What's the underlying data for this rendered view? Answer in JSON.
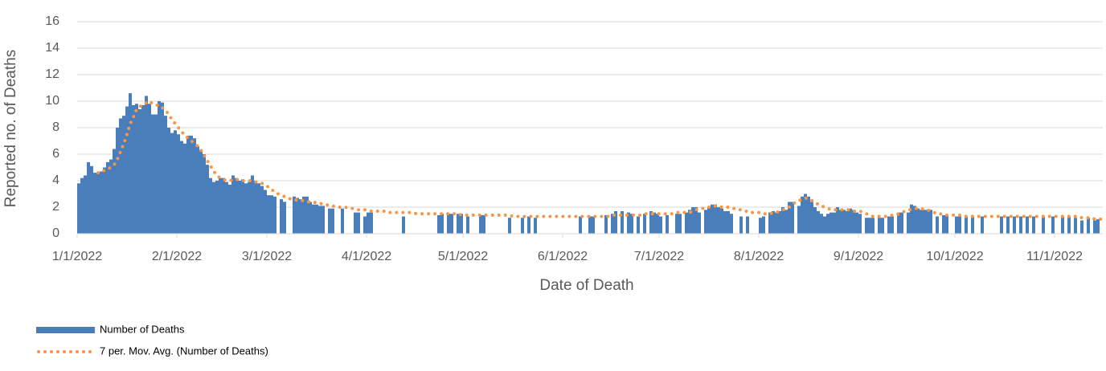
{
  "chart_data": {
    "type": "bar",
    "y_label": "Reported no. of Deaths",
    "x_label": "Date of Death",
    "ylim": [
      0,
      16
    ],
    "yticks": [
      0,
      2,
      4,
      6,
      8,
      10,
      12,
      14,
      16
    ],
    "grid": true,
    "legend": "bottom-left",
    "xticks": [
      "1/1/2022",
      "2/1/2022",
      "3/1/2022",
      "4/1/2022",
      "5/1/2022",
      "6/1/2022",
      "7/1/2022",
      "8/1/2022",
      "9/1/2022",
      "10/1/2022",
      "11/1/2022"
    ],
    "x": [
      "1/1/2022",
      "1/2/2022",
      "1/3/2022",
      "1/4/2022",
      "1/5/2022",
      "1/6/2022",
      "1/7/2022",
      "1/8/2022",
      "1/9/2022",
      "1/10/2022",
      "1/11/2022",
      "1/12/2022",
      "1/13/2022",
      "1/14/2022",
      "1/15/2022",
      "1/16/2022",
      "1/17/2022",
      "1/18/2022",
      "1/19/2022",
      "1/20/2022",
      "1/21/2022",
      "1/22/2022",
      "1/23/2022",
      "1/24/2022",
      "1/25/2022",
      "1/26/2022",
      "1/27/2022",
      "1/28/2022",
      "1/29/2022",
      "1/30/2022",
      "1/31/2022",
      "2/1/2022",
      "2/2/2022",
      "2/3/2022",
      "2/4/2022",
      "2/5/2022",
      "2/6/2022",
      "2/7/2022",
      "2/8/2022",
      "2/9/2022",
      "2/10/2022",
      "2/11/2022",
      "2/12/2022",
      "2/13/2022",
      "2/14/2022",
      "2/15/2022",
      "2/16/2022",
      "2/17/2022",
      "2/18/2022",
      "2/19/2022",
      "2/20/2022",
      "2/21/2022",
      "2/22/2022",
      "2/23/2022",
      "2/24/2022",
      "2/25/2022",
      "2/26/2022",
      "2/27/2022",
      "2/28/2022",
      "3/1/2022",
      "3/2/2022",
      "3/3/2022",
      "3/4/2022",
      "3/5/2022",
      "3/6/2022",
      "3/7/2022",
      "3/8/2022",
      "3/9/2022",
      "3/10/2022",
      "3/11/2022",
      "3/12/2022",
      "3/13/2022",
      "3/14/2022",
      "3/15/2022",
      "3/16/2022",
      "3/17/2022",
      "3/18/2022",
      "3/19/2022",
      "3/20/2022",
      "3/21/2022",
      "3/22/2022",
      "3/23/2022",
      "3/24/2022",
      "3/25/2022",
      "3/26/2022",
      "3/27/2022",
      "3/28/2022",
      "3/29/2022",
      "3/30/2022",
      "3/31/2022",
      "4/1/2022",
      "4/2/2022",
      "4/3/2022",
      "4/4/2022",
      "4/5/2022",
      "4/6/2022",
      "4/7/2022",
      "4/8/2022",
      "4/9/2022",
      "4/10/2022",
      "4/11/2022",
      "4/12/2022",
      "4/13/2022",
      "4/14/2022",
      "4/15/2022",
      "4/16/2022",
      "4/17/2022",
      "4/18/2022",
      "4/19/2022",
      "4/20/2022",
      "4/21/2022",
      "4/22/2022",
      "4/23/2022",
      "4/24/2022",
      "4/25/2022",
      "4/26/2022",
      "4/27/2022",
      "4/28/2022",
      "4/29/2022",
      "4/30/2022",
      "5/1/2022",
      "5/2/2022",
      "5/3/2022",
      "5/4/2022",
      "5/5/2022",
      "5/6/2022",
      "5/7/2022",
      "5/8/2022",
      "5/9/2022",
      "5/10/2022",
      "5/11/2022",
      "5/12/2022",
      "5/13/2022",
      "5/14/2022",
      "5/15/2022",
      "5/16/2022",
      "5/17/2022",
      "5/18/2022",
      "5/19/2022",
      "5/20/2022",
      "5/21/2022",
      "5/22/2022",
      "5/23/2022",
      "5/24/2022",
      "5/25/2022",
      "5/26/2022",
      "5/27/2022",
      "5/28/2022",
      "5/29/2022",
      "5/30/2022",
      "5/31/2022",
      "6/1/2022",
      "6/2/2022",
      "6/3/2022",
      "6/4/2022",
      "6/5/2022",
      "6/6/2022",
      "6/7/2022",
      "6/8/2022",
      "6/9/2022",
      "6/10/2022",
      "6/11/2022",
      "6/12/2022",
      "6/13/2022",
      "6/14/2022",
      "6/15/2022",
      "6/16/2022",
      "6/17/2022",
      "6/18/2022",
      "6/19/2022",
      "6/20/2022",
      "6/21/2022",
      "6/22/2022",
      "6/23/2022",
      "6/24/2022",
      "6/25/2022",
      "6/26/2022",
      "6/27/2022",
      "6/28/2022",
      "6/29/2022",
      "6/30/2022",
      "7/1/2022",
      "7/2/2022",
      "7/3/2022",
      "7/4/2022",
      "7/5/2022",
      "7/6/2022",
      "7/7/2022",
      "7/8/2022",
      "7/9/2022",
      "7/10/2022",
      "7/11/2022",
      "7/12/2022",
      "7/13/2022",
      "7/14/2022",
      "7/15/2022",
      "7/16/2022",
      "7/17/2022",
      "7/18/2022",
      "7/19/2022",
      "7/20/2022",
      "7/21/2022",
      "7/22/2022",
      "7/23/2022",
      "7/24/2022",
      "7/25/2022",
      "7/26/2022",
      "7/27/2022",
      "7/28/2022",
      "7/29/2022",
      "7/30/2022",
      "7/31/2022",
      "8/1/2022",
      "8/2/2022",
      "8/3/2022",
      "8/4/2022",
      "8/5/2022",
      "8/6/2022",
      "8/7/2022",
      "8/8/2022",
      "8/9/2022",
      "8/10/2022",
      "8/11/2022",
      "8/12/2022",
      "8/13/2022",
      "8/14/2022",
      "8/15/2022",
      "8/16/2022",
      "8/17/2022",
      "8/18/2022",
      "8/19/2022",
      "8/20/2022",
      "8/21/2022",
      "8/22/2022",
      "8/23/2022",
      "8/24/2022",
      "8/25/2022",
      "8/26/2022",
      "8/27/2022",
      "8/28/2022",
      "8/29/2022",
      "8/30/2022",
      "8/31/2022",
      "9/1/2022",
      "9/2/2022",
      "9/3/2022",
      "9/4/2022",
      "9/5/2022",
      "9/6/2022",
      "9/7/2022",
      "9/8/2022",
      "9/9/2022",
      "9/10/2022",
      "9/11/2022",
      "9/12/2022",
      "9/13/2022",
      "9/14/2022",
      "9/15/2022",
      "9/16/2022",
      "9/17/2022",
      "9/18/2022",
      "9/19/2022",
      "9/20/2022",
      "9/21/2022",
      "9/22/2022",
      "9/23/2022",
      "9/24/2022",
      "9/25/2022",
      "9/26/2022",
      "9/27/2022",
      "9/28/2022",
      "9/29/2022",
      "9/30/2022",
      "10/1/2022",
      "10/2/2022",
      "10/3/2022",
      "10/4/2022",
      "10/5/2022",
      "10/6/2022",
      "10/7/2022",
      "10/8/2022",
      "10/9/2022",
      "10/10/2022",
      "10/11/2022",
      "10/12/2022",
      "10/13/2022",
      "10/14/2022",
      "10/15/2022",
      "10/16/2022",
      "10/17/2022",
      "10/18/2022",
      "10/19/2022",
      "10/20/2022",
      "10/21/2022",
      "10/22/2022",
      "10/23/2022",
      "10/24/2022",
      "10/25/2022",
      "10/26/2022",
      "10/27/2022",
      "10/28/2022",
      "10/29/2022",
      "10/30/2022",
      "10/31/2022",
      "11/1/2022",
      "11/2/2022",
      "11/3/2022",
      "11/4/2022",
      "11/5/2022",
      "11/6/2022",
      "11/7/2022",
      "11/8/2022",
      "11/9/2022",
      "11/10/2022",
      "11/11/2022",
      "11/12/2022",
      "11/13/2022",
      "11/14/2022",
      "11/15/2022"
    ],
    "series": [
      {
        "name": "Number of Deaths",
        "type": "bar",
        "color": "#4a7ebb",
        "values": [
          3.8,
          4.2,
          4.4,
          5.4,
          5.1,
          4.6,
          4.6,
          4.7,
          5.0,
          5.4,
          5.6,
          6.4,
          8.0,
          8.7,
          8.9,
          9.6,
          10.6,
          9.7,
          9.8,
          9.4,
          9.7,
          10.4,
          9.8,
          9.0,
          9.0,
          10.0,
          9.9,
          8.9,
          8.0,
          7.6,
          7.8,
          7.5,
          7.0,
          6.8,
          7.4,
          7.4,
          7.2,
          6.6,
          6.3,
          6.0,
          5.2,
          4.2,
          3.9,
          4.0,
          4.2,
          4.2,
          3.9,
          3.7,
          4.4,
          4.2,
          4.0,
          4.1,
          3.8,
          3.9,
          4.4,
          4.0,
          3.8,
          3.6,
          3.3,
          2.9,
          2.9,
          2.8,
          0,
          2.6,
          2.4,
          0,
          0,
          2.8,
          2.7,
          2.6,
          2.8,
          2.8,
          2.4,
          2.2,
          2.2,
          2.1,
          2.1,
          0,
          1.9,
          1.9,
          0,
          0,
          1.9,
          0,
          0,
          0,
          1.6,
          1.6,
          0,
          1.3,
          1.6,
          1.6,
          0,
          0,
          0,
          0,
          0,
          0,
          0,
          0,
          0,
          1.3,
          0,
          0,
          0,
          0,
          0,
          0,
          0,
          0,
          0,
          0,
          1.4,
          1.5,
          0,
          1.5,
          1.5,
          0,
          1.5,
          1.5,
          0,
          1.3,
          0,
          0,
          0,
          1.4,
          1.4,
          0,
          0,
          0,
          0,
          0,
          0,
          0,
          1.2,
          0,
          0,
          0,
          1.2,
          0,
          1.3,
          0,
          1.2,
          0,
          0,
          0,
          0,
          0,
          0,
          0,
          0,
          0,
          0,
          0,
          0,
          0,
          1.3,
          0,
          0,
          1.3,
          1.3,
          0,
          0,
          0,
          1.4,
          0,
          1.5,
          1.7,
          0,
          1.7,
          0,
          1.6,
          1.5,
          0,
          1.3,
          0,
          1.5,
          0,
          1.7,
          1.6,
          1.5,
          1.3,
          0,
          1.4,
          0,
          0,
          1.5,
          1.5,
          0,
          1.6,
          1.8,
          2.0,
          2.0,
          1.6,
          0,
          1.8,
          2.0,
          2.2,
          2.2,
          2.0,
          1.9,
          1.7,
          1.7,
          1.5,
          0,
          0,
          1.3,
          0,
          1.3,
          0,
          0,
          0,
          1.2,
          1.3,
          0,
          1.6,
          1.7,
          1.6,
          1.7,
          2.0,
          1.8,
          2.4,
          2.4,
          0,
          2.1,
          2.8,
          3.0,
          2.8,
          2.4,
          2.0,
          1.7,
          1.5,
          1.3,
          1.5,
          1.6,
          1.6,
          2.0,
          1.8,
          1.8,
          1.7,
          1.9,
          1.8,
          1.6,
          1.5,
          0,
          1.2,
          1.2,
          1.2,
          0,
          1.2,
          1.2,
          0,
          1.3,
          1.3,
          0,
          1.6,
          1.6,
          0,
          1.6,
          2.2,
          2.1,
          1.9,
          1.8,
          1.8,
          1.8,
          1.8,
          0,
          1.3,
          0,
          1.4,
          1.4,
          0,
          0,
          1.3,
          1.3,
          0,
          1.3,
          0,
          1.3,
          0,
          0,
          1.3,
          0,
          0,
          0,
          0,
          0,
          1.3,
          0,
          1.3,
          0,
          1.3,
          0,
          1.3,
          0,
          1.3,
          0,
          1.3,
          0,
          0,
          1.3,
          0,
          0,
          1.3,
          0,
          0,
          1.3,
          0,
          1.3,
          0,
          1.2,
          0,
          1.0,
          0,
          1.2,
          0,
          1.0,
          1.1,
          0
        ]
      },
      {
        "name": "7 per. Mov. Avg. (Number of Deaths)",
        "type": "line",
        "color": "#f79646",
        "values": [
          null,
          null,
          null,
          null,
          null,
          null,
          4.6,
          4.6,
          4.8,
          4.9,
          5.0,
          5.2,
          5.6,
          6.2,
          6.8,
          7.5,
          8.3,
          8.8,
          9.4,
          9.6,
          9.7,
          9.9,
          10.0,
          9.8,
          9.7,
          9.7,
          9.5,
          9.3,
          9.0,
          8.6,
          8.3,
          8.0,
          7.7,
          7.4,
          7.2,
          7.0,
          6.8,
          6.6,
          6.3,
          5.9,
          5.5,
          5.1,
          4.7,
          4.4,
          4.2,
          4.1,
          4.0,
          4.0,
          4.1,
          4.1,
          4.1,
          4.0,
          4.0,
          4.0,
          4.0,
          3.9,
          3.9,
          3.8,
          3.7,
          3.5,
          3.3,
          3.2,
          3.0,
          2.9,
          2.8,
          2.7,
          2.6,
          2.6,
          2.5,
          2.5,
          2.5,
          2.4,
          2.4,
          2.4,
          2.3,
          2.3,
          2.2,
          2.2,
          2.1,
          2.1,
          2.0,
          2.0,
          2.0,
          2.0,
          1.9,
          1.9,
          1.9,
          1.8,
          1.8,
          1.8,
          1.8,
          1.7,
          1.7,
          1.7,
          1.7,
          1.7,
          1.6,
          1.6,
          1.6,
          1.6,
          1.6,
          1.6,
          1.6,
          1.6,
          1.6,
          1.5,
          1.5,
          1.5,
          1.5,
          1.5,
          1.5,
          1.5,
          1.5,
          1.5,
          1.5,
          1.5,
          1.5,
          1.5,
          1.5,
          1.4,
          1.4,
          1.4,
          1.4,
          1.4,
          1.4,
          1.4,
          1.4,
          1.4,
          1.4,
          1.4,
          1.4,
          1.4,
          1.4,
          1.4,
          1.4,
          1.3,
          1.3,
          1.3,
          1.3,
          1.3,
          1.3,
          1.3,
          1.3,
          1.3,
          1.3,
          1.3,
          1.3,
          1.3,
          1.3,
          1.3,
          1.3,
          1.3,
          1.3,
          1.3,
          1.3,
          1.3,
          1.3,
          1.3,
          1.3,
          1.3,
          1.3,
          1.3,
          1.3,
          1.3,
          1.3,
          1.3,
          1.4,
          1.4,
          1.4,
          1.4,
          1.4,
          1.4,
          1.4,
          1.4,
          1.4,
          1.4,
          1.5,
          1.5,
          1.5,
          1.5,
          1.5,
          1.5,
          1.5,
          1.5,
          1.5,
          1.5,
          1.6,
          1.6,
          1.6,
          1.6,
          1.6,
          1.7,
          1.8,
          1.9,
          1.9,
          2.0,
          2.0,
          2.0,
          2.1,
          2.1,
          2.0,
          2.0,
          2.0,
          1.9,
          1.9,
          1.8,
          1.8,
          1.7,
          1.7,
          1.6,
          1.6,
          1.6,
          1.6,
          1.5,
          1.5,
          1.5,
          1.6,
          1.6,
          1.7,
          1.8,
          1.9,
          2.0,
          2.2,
          2.4,
          2.5,
          2.6,
          2.7,
          2.6,
          2.5,
          2.4,
          2.2,
          2.1,
          2.0,
          1.9,
          1.8,
          1.8,
          1.8,
          1.8,
          1.8,
          1.8,
          1.8,
          1.7,
          1.7,
          1.7,
          1.6,
          1.5,
          1.4,
          1.3,
          1.3,
          1.3,
          1.3,
          1.3,
          1.3,
          1.4,
          1.4,
          1.5,
          1.6,
          1.7,
          1.8,
          1.8,
          1.9,
          1.9,
          1.9,
          1.8,
          1.8,
          1.7,
          1.6,
          1.5,
          1.5,
          1.4,
          1.4,
          1.4,
          1.4,
          1.4,
          1.4,
          1.3,
          1.3,
          1.3,
          1.3,
          1.3,
          1.3,
          1.3,
          1.3,
          1.3,
          1.3,
          1.3,
          1.3,
          1.3,
          1.3,
          1.3,
          1.3,
          1.3,
          1.3,
          1.3,
          1.3,
          1.3,
          1.3,
          1.3,
          1.3,
          1.3,
          1.3,
          1.3,
          1.3,
          1.3,
          1.3,
          1.3,
          1.3,
          1.3,
          1.3,
          1.3,
          1.3,
          1.3,
          1.2,
          1.2,
          1.2,
          1.2,
          1.1,
          1.1,
          1.1
        ]
      }
    ]
  }
}
